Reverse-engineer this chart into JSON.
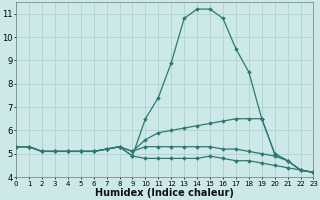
{
  "xlabel": "Humidex (Indice chaleur)",
  "background_color": "#cce8e8",
  "grid_color": "#aacece",
  "line_color": "#2d7a6e",
  "x_values": [
    0,
    1,
    2,
    3,
    4,
    5,
    6,
    7,
    8,
    9,
    10,
    11,
    12,
    13,
    14,
    15,
    16,
    17,
    18,
    19,
    20,
    21,
    22,
    23
  ],
  "series": [
    [
      5.3,
      5.3,
      5.1,
      5.1,
      5.1,
      5.1,
      5.1,
      5.2,
      5.3,
      4.9,
      6.5,
      7.4,
      8.9,
      10.8,
      11.2,
      11.2,
      10.8,
      9.5,
      8.5,
      6.5,
      5.0,
      4.7,
      4.3,
      4.2
    ],
    [
      5.3,
      5.3,
      5.1,
      5.1,
      5.1,
      5.1,
      5.1,
      5.2,
      5.3,
      5.1,
      5.6,
      5.9,
      6.0,
      6.1,
      6.2,
      6.3,
      6.4,
      6.5,
      6.5,
      6.5,
      5.0,
      4.7,
      4.3,
      4.2
    ],
    [
      5.3,
      5.3,
      5.1,
      5.1,
      5.1,
      5.1,
      5.1,
      5.2,
      5.3,
      5.1,
      5.3,
      5.3,
      5.3,
      5.3,
      5.3,
      5.3,
      5.2,
      5.2,
      5.1,
      5.0,
      4.9,
      4.7,
      4.3,
      4.2
    ],
    [
      5.3,
      5.3,
      5.1,
      5.1,
      5.1,
      5.1,
      5.1,
      5.2,
      5.3,
      4.9,
      4.8,
      4.8,
      4.8,
      4.8,
      4.8,
      4.9,
      4.8,
      4.7,
      4.7,
      4.6,
      4.5,
      4.4,
      4.3,
      4.2
    ]
  ],
  "xlim": [
    0,
    23
  ],
  "ylim": [
    4,
    11.5
  ],
  "yticks": [
    4,
    5,
    6,
    7,
    8,
    9,
    10,
    11
  ],
  "xticks": [
    0,
    1,
    2,
    3,
    4,
    5,
    6,
    7,
    8,
    9,
    10,
    11,
    12,
    13,
    14,
    15,
    16,
    17,
    18,
    19,
    20,
    21,
    22,
    23
  ],
  "marker": "D",
  "markersize": 1.8,
  "linewidth": 0.9,
  "xlabel_fontsize": 7.0,
  "tick_labelsize": 5.5
}
